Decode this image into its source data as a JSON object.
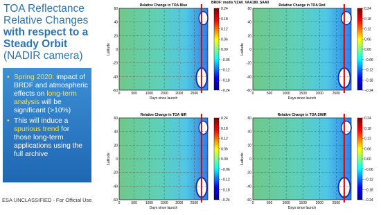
{
  "title": {
    "lines": [
      "TOA Reflectance",
      "Relative Changes",
      "with respect to a",
      "Steady Orbit",
      "(NADIR camera)"
    ]
  },
  "bullets": [
    [
      {
        "text": "Spring 2020:",
        "highlight": true
      },
      {
        "text": " impact of BRDF and atmospheric effects on "
      },
      {
        "text": "long-term analysis",
        "highlight": true
      },
      {
        "text": " will be significant (>10%)"
      }
    ],
    [
      {
        "text": "This will induce a "
      },
      {
        "text": "spurious trend",
        "highlight": true
      },
      {
        "text": " for those long-term applications using the full archive"
      }
    ]
  ],
  "footer": "ESA UNCLASSIFIED - For Official Use",
  "header_label": "BRDF: modis VZA0_VAA180_SAA0",
  "marker_day": 2740,
  "panels": [
    {
      "title": "Relative Change in TOA Blue",
      "x_label": "Days since launch",
      "y_label": "Latitude"
    },
    {
      "title": "Relative Change in TOA Red",
      "x_label": "Days since launch",
      "y_label": "Latitude"
    },
    {
      "title": "Relative Change in TOA NIR",
      "x_label": "Days since launch",
      "y_label": "Latitude"
    },
    {
      "title": "Relative Change in TOA SWIR",
      "x_label": "Days since launch",
      "y_label": "Latitude"
    }
  ],
  "xlim": [
    0,
    2950
  ],
  "xticks": [
    0,
    500,
    1000,
    1500,
    2000,
    2500
  ],
  "ylim": [
    -60,
    60
  ],
  "yticks": [
    -60,
    -40,
    -20,
    0,
    20,
    40,
    60
  ],
  "colorbar_lim": [
    -0.24,
    0.24
  ],
  "colorbar_ticks": [
    0.24,
    0.18,
    0.12,
    0.06,
    {
      "value": 0,
      "label": "0.00"
    },
    {
      "value": -0.06,
      "label": "−0.06"
    },
    {
      "value": -0.12,
      "label": "−0.12"
    },
    {
      "value": -0.18,
      "label": "−0.18"
    },
    {
      "value": -0.24,
      "label": "−0.24"
    }
  ]
}
